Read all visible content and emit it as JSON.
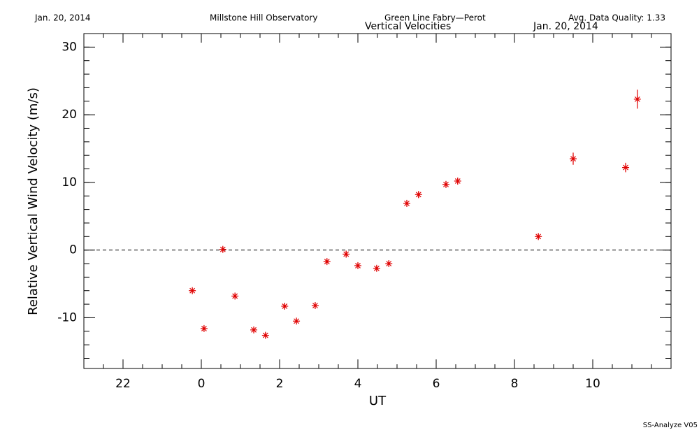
{
  "chart_data": {
    "type": "scatter",
    "header": {
      "date": "Jan. 20, 2014",
      "observatory": "Millstone Hill Observatory",
      "instrument": "Green Line Fabry—Perot",
      "quality": "Avg. Data Quality: 1.33",
      "date_right": "Jan. 20, 2014"
    },
    "title": "Vertical Velocities",
    "footer": "SS-Analyze V05",
    "x_label": "UT",
    "y_label": "Relative Vertical Wind Velocity (m/s)",
    "xlim": [
      -3,
      12
    ],
    "ylim": [
      -17.5,
      32
    ],
    "xticks": [
      {
        "value": -2,
        "label": "22"
      },
      0,
      2,
      4,
      6,
      8,
      10
    ],
    "yticks": [
      -10,
      0,
      10,
      20,
      30
    ],
    "xminor_step": 0.5,
    "yminor_step": 2,
    "reference_line": 0,
    "color": "#e00000",
    "x": [
      -0.23,
      0.07,
      0.55,
      0.86,
      1.34,
      1.64,
      2.13,
      2.43,
      2.91,
      3.21,
      3.7,
      4.0,
      4.48,
      4.79,
      5.25,
      5.55,
      6.25,
      6.55,
      8.61,
      9.5,
      10.84,
      11.14
    ],
    "values": [
      -6.0,
      -11.6,
      0.1,
      -6.8,
      -11.8,
      -12.6,
      -8.3,
      -10.5,
      -8.2,
      -1.7,
      -0.6,
      -2.3,
      -2.7,
      -2.0,
      6.9,
      8.2,
      9.7,
      10.2,
      2.0,
      13.5,
      12.2,
      22.3
    ],
    "errors": [
      0.4,
      0.4,
      0.4,
      0.4,
      0.4,
      0.4,
      0.4,
      0.4,
      0.4,
      0.4,
      0.5,
      0.4,
      0.4,
      0.4,
      0.5,
      0.5,
      0.5,
      0.5,
      0.4,
      0.9,
      0.7,
      1.4
    ]
  }
}
